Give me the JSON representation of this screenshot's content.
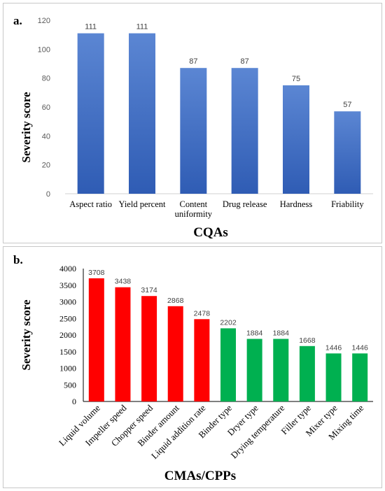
{
  "chart_data": [
    {
      "panel_label": "a.",
      "type": "bar",
      "categories": [
        "Aspect ratio",
        "Yield percent",
        "Content uniformity",
        "Drug release",
        "Hardness",
        "Friability"
      ],
      "values": [
        111,
        111,
        87,
        87,
        75,
        57
      ],
      "data_labels": [
        "111",
        "111",
        "87",
        "87",
        "75",
        "57"
      ],
      "xlabel": "CQAs",
      "ylabel": "Severity score",
      "ylim": [
        0,
        120
      ],
      "yticks": [
        "0",
        "20",
        "40",
        "60",
        "80",
        "100",
        "120"
      ],
      "grid": false,
      "bar_color": "#4a72c4"
    },
    {
      "panel_label": "b.",
      "type": "bar",
      "categories": [
        "Liquid volume",
        "Impeller speed",
        "Chopper speed",
        "Binder amount",
        "Liquid addition rate",
        "Binder type",
        "Dryer type",
        "Drying temperature",
        "Filler type",
        "Mixer type",
        "Mixing time"
      ],
      "values": [
        3708,
        3438,
        3174,
        2868,
        2478,
        2202,
        1884,
        1884,
        1668,
        1446,
        1446
      ],
      "data_labels": [
        "3708",
        "3438",
        "3174",
        "2868",
        "2478",
        "2202",
        "1884",
        "1884",
        "1668",
        "1446",
        "1446"
      ],
      "bar_colors": [
        "#ff0000",
        "#ff0000",
        "#ff0000",
        "#ff0000",
        "#ff0000",
        "#00b050",
        "#00b050",
        "#00b050",
        "#00b050",
        "#00b050",
        "#00b050"
      ],
      "xlabel": "CMAs/CPPs",
      "ylabel": "Severity  score",
      "ylim": [
        0,
        4000
      ],
      "yticks": [
        "0",
        "500",
        "1000",
        "1500",
        "2000",
        "2500",
        "3000",
        "3500",
        "4000"
      ],
      "grid": false
    }
  ]
}
